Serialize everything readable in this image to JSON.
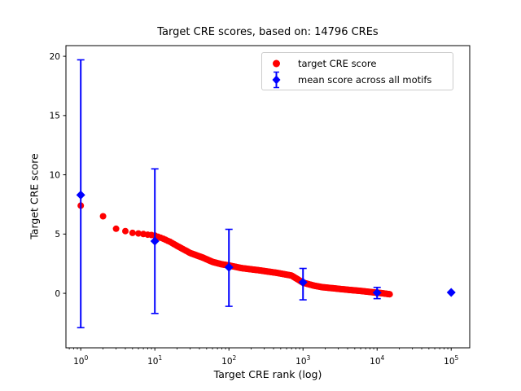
{
  "chart_data": {
    "type": "scatter",
    "title": "Target CRE scores, based on: 14796 CREs",
    "xlabel": "Target CRE rank (log)",
    "ylabel": "Target CRE score",
    "x_scale": "log10",
    "xlim_log10": [
      -0.2,
      5.25
    ],
    "ylim": [
      -4.6,
      20.9
    ],
    "x_tick_base": "10",
    "x_tick_exponents": [
      0,
      1,
      2,
      3,
      4,
      5
    ],
    "y_ticks": [
      0,
      5,
      10,
      15,
      20
    ],
    "grid": false,
    "colors": {
      "target_series": "#ff0000",
      "mean_series": "#0000ff",
      "spine": "#000000",
      "legend_border": "#cccccc",
      "background": "#ffffff"
    },
    "legend": {
      "position": "upper-right-of-center",
      "entries": [
        {
          "label": "target CRE score",
          "marker": "red-filled-circle",
          "color": "#ff0000"
        },
        {
          "label": "mean score across all motifs",
          "marker": "blue-diamond-with-errorbar",
          "color": "#0000ff"
        }
      ]
    },
    "series": [
      {
        "name": "target CRE score",
        "render": "dense-rank-curve",
        "marker": "circle",
        "marker_radius_px": 4,
        "color": "#ff0000",
        "n_points_stated": 14796,
        "rank_score_anchors": [
          [
            1,
            7.4
          ],
          [
            2,
            6.5
          ],
          [
            3,
            5.45
          ],
          [
            4,
            5.25
          ],
          [
            5,
            5.1
          ],
          [
            6,
            5.05
          ],
          [
            7,
            5.0
          ],
          [
            8,
            4.95
          ],
          [
            9,
            4.92
          ],
          [
            10,
            4.88
          ],
          [
            13,
            4.6
          ],
          [
            16,
            4.35
          ],
          [
            20,
            4.0
          ],
          [
            30,
            3.4
          ],
          [
            45,
            3.0
          ],
          [
            60,
            2.65
          ],
          [
            80,
            2.45
          ],
          [
            100,
            2.35
          ],
          [
            150,
            2.12
          ],
          [
            250,
            1.95
          ],
          [
            450,
            1.72
          ],
          [
            700,
            1.5
          ],
          [
            1000,
            0.9
          ],
          [
            1400,
            0.65
          ],
          [
            1800,
            0.52
          ],
          [
            2600,
            0.42
          ],
          [
            4000,
            0.3
          ],
          [
            6000,
            0.2
          ],
          [
            9000,
            0.08
          ],
          [
            12000,
            0.0
          ],
          [
            14796,
            -0.08
          ]
        ]
      },
      {
        "name": "mean score across all motifs",
        "render": "errorbar-diamonds",
        "marker": "diamond",
        "color": "#0000ff",
        "points": [
          {
            "rank": 1,
            "mean": 8.3,
            "err_low": -2.9,
            "err_high": 19.7
          },
          {
            "rank": 10,
            "mean": 4.4,
            "err_low": -1.7,
            "err_high": 10.5
          },
          {
            "rank": 100,
            "mean": 2.2,
            "err_low": -1.1,
            "err_high": 5.4
          },
          {
            "rank": 1000,
            "mean": 0.93,
            "err_low": -0.55,
            "err_high": 2.1
          },
          {
            "rank": 10000,
            "mean": 0.05,
            "err_low": -0.45,
            "err_high": 0.5
          },
          {
            "rank": 100000,
            "mean": 0.07,
            "err_low": null,
            "err_high": null
          }
        ]
      }
    ]
  }
}
